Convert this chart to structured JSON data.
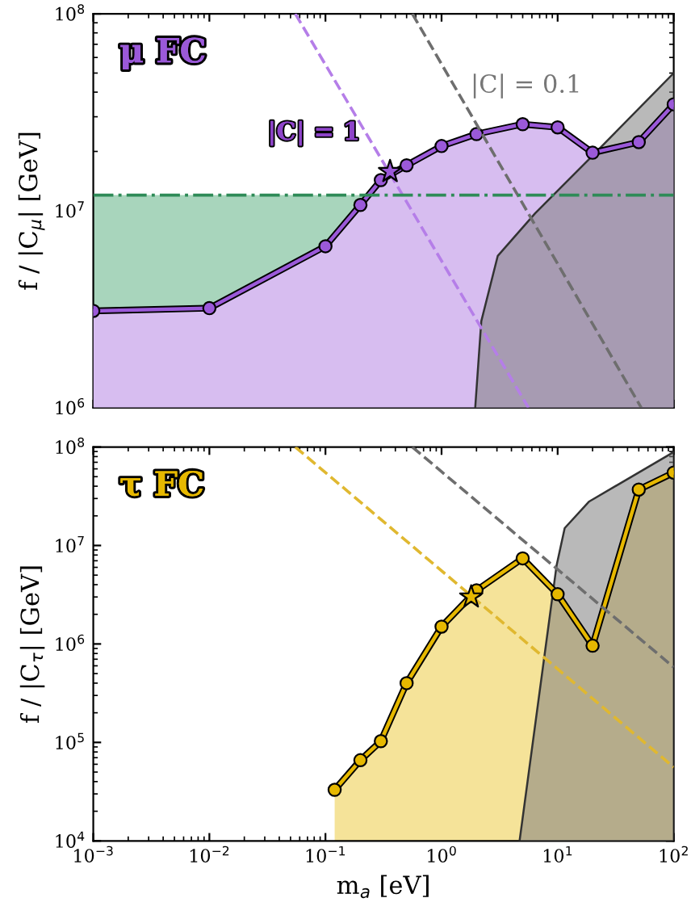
{
  "chart_data": [
    {
      "type": "area",
      "title": "μ FC",
      "ylabel": "f / |C$_{μ}$| [GeV]",
      "log": "xy",
      "grid": false,
      "tick_labels": "y",
      "xlim": [
        0.001,
        100
      ],
      "ylim": [
        1000000,
        100000000
      ],
      "xticks": [
        {
          "value": 0.001,
          "label": null
        },
        {
          "value": 0.01,
          "label": null
        },
        {
          "value": 0.1,
          "label": null
        },
        {
          "value": 1,
          "label": null
        },
        {
          "value": 10,
          "label": null
        },
        {
          "value": 100,
          "label": null
        }
      ],
      "yticks": [
        {
          "value": 1000000,
          "label": "10$^{6}$"
        },
        {
          "value": 10000000,
          "label": "10$^{7}$"
        },
        {
          "value": 100000000,
          "label": "10$^{8}$"
        }
      ],
      "ref_lines": [
        {
          "axis": "y",
          "value": 12000000,
          "color": "#2e8b57",
          "line_style": "dashdot"
        }
      ],
      "annotations": [
        "|C| = 0.1",
        "|C| = 1"
      ],
      "series": [
        {
          "color": "#a8d5bc",
          "x": [
            0.001,
            0.22
          ],
          "values": [
            12000000,
            12000000
          ]
        },
        {
          "marker": "circle",
          "color": "#9b59d9",
          "x": [
            0.001,
            0.01,
            0.1,
            0.2,
            0.3,
            0.5,
            1,
            2,
            5,
            10,
            20,
            50,
            100
          ],
          "values": [
            3100000,
            3200000,
            6600000,
            10700000,
            14300000,
            17000000,
            21300000,
            24500000,
            27500000,
            26500000,
            19700000,
            22300000,
            34700000
          ]
        },
        {
          "type": "scatter",
          "marker": "star",
          "color": "#9b59d9",
          "x": [
            0.36
          ],
          "values": [
            15800000
          ]
        },
        {
          "color": "#808080",
          "x": [
            1.95,
            2.2,
            3.05,
            6.4,
            18.5,
            100
          ],
          "values": [
            1000000,
            2750000,
            5900000,
            9700000,
            18200000,
            50000000
          ]
        },
        {
          "type": "line",
          "line_style": "dashed",
          "color": "#b57ee8",
          "x": [
            0.055,
            5.6
          ],
          "values": [
            100000000,
            1000000
          ]
        },
        {
          "type": "line",
          "line_style": "dashed",
          "color": "#6e6e6e",
          "x": [
            0.56,
            52.5
          ],
          "values": [
            100000000,
            1000000
          ]
        }
      ]
    },
    {
      "type": "area",
      "title": "τ FC",
      "ylabel": "f / |C$_{τ}$| [GeV]",
      "xlabel": "m$_{a}$ [eV]",
      "log": "xy",
      "grid": false,
      "xlim": [
        0.001,
        100
      ],
      "ylim": [
        10000,
        100000000
      ],
      "xticks": [
        {
          "value": 0.001,
          "label": "10$^{−3}$"
        },
        {
          "value": 0.01,
          "label": "10$^{−2}$"
        },
        {
          "value": 0.1,
          "label": "10$^{−1}$"
        },
        {
          "value": 1,
          "label": "10$^{0}$"
        },
        {
          "value": 10,
          "label": "10$^{1}$"
        },
        {
          "value": 100,
          "label": "10$^{2}$"
        }
      ],
      "yticks": [
        {
          "value": 10000,
          "label": "10$^{4}$"
        },
        {
          "value": 100000,
          "label": "10$^{5}$"
        },
        {
          "value": 1000000,
          "label": "10$^{6}$"
        },
        {
          "value": 10000000,
          "label": "10$^{7}$"
        },
        {
          "value": 100000000,
          "label": "10$^{8}$"
        }
      ],
      "series": [
        {
          "marker": "circle",
          "color": "#e6b800",
          "x": [
            0.12,
            0.2,
            0.3,
            0.5,
            1,
            2,
            5,
            10,
            20,
            50,
            100
          ],
          "values": [
            33000,
            66000,
            103000,
            400000,
            1500000,
            3500000,
            7400000,
            3200000,
            960000,
            37000000,
            55000000
          ]
        },
        {
          "type": "scatter",
          "marker": "star",
          "color": "#e6b800",
          "x": [
            1.8
          ],
          "values": [
            3000000
          ]
        },
        {
          "color": "#808080",
          "x": [
            4.7,
            9.8,
            11.5,
            18.7,
            100
          ],
          "values": [
            10000,
            6300000,
            15000000,
            28000000,
            89000000
          ]
        },
        {
          "type": "line",
          "line_style": "dashed",
          "color": "#e0b830",
          "x": [
            0.055,
            100
          ],
          "values": [
            100000000,
            56000
          ]
        },
        {
          "type": "line",
          "line_style": "dashed",
          "color": "#6e6e6e",
          "x": [
            0.56,
            100
          ],
          "values": [
            100000000,
            580000
          ]
        }
      ]
    }
  ]
}
